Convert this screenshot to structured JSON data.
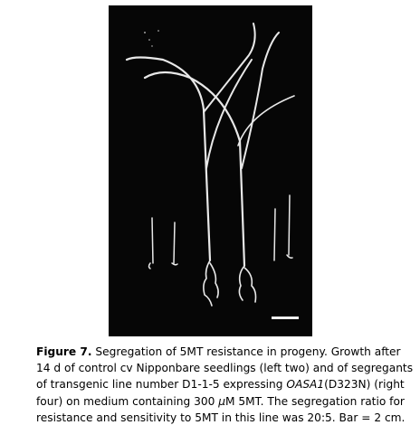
{
  "figure": {
    "label": "Figure 7.",
    "caption_parts": {
      "p1": " Segregation of 5MT resistance in progeny. Growth after 14 d of control cv Nipponbare seedlings (left two) and of segregants of transgenic line number D1-1-5 expressing ",
      "gene": "OASA1",
      "p2": "(D323N) (right four) on medium containing 300 ",
      "mu": "μ",
      "p3": "M 5MT. The segregation ratio for resistance and sensitivity to 5MT in this line was 20:5. Bar = 2 cm."
    },
    "photo_description_name": "rice-seedlings-photo"
  }
}
